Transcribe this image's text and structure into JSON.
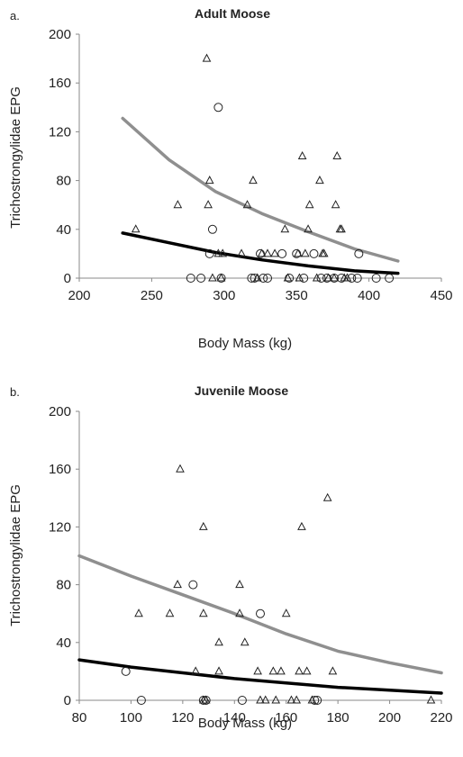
{
  "chart_data": [
    {
      "type": "scatter",
      "panel_label": "a.",
      "title": "Adult Moose",
      "xlabel": "Body Mass (kg)",
      "ylabel": "Trichostrongylidae EPG",
      "xlim": [
        200,
        450
      ],
      "ylim": [
        0,
        200
      ],
      "x_ticks": [
        200,
        250,
        300,
        350,
        400,
        450
      ],
      "y_ticks": [
        0,
        40,
        80,
        120,
        160,
        200
      ],
      "grid": false,
      "series": [
        {
          "marker": "triangle",
          "points": [
            [
              239,
              40
            ],
            [
              268,
              60
            ],
            [
              288,
              180
            ],
            [
              289,
              60
            ],
            [
              290,
              80
            ],
            [
              292,
              0
            ],
            [
              296,
              20
            ],
            [
              298,
              0
            ],
            [
              299,
              20
            ],
            [
              312,
              20
            ],
            [
              316,
              60
            ],
            [
              320,
              80
            ],
            [
              323,
              0
            ],
            [
              326,
              20
            ],
            [
              330,
              20
            ],
            [
              335,
              20
            ],
            [
              342,
              40
            ],
            [
              344,
              0
            ],
            [
              351,
              20
            ],
            [
              352,
              0
            ],
            [
              354,
              100
            ],
            [
              356,
              20
            ],
            [
              358,
              40
            ],
            [
              359,
              60
            ],
            [
              364,
              0
            ],
            [
              366,
              80
            ],
            [
              368,
              20
            ],
            [
              369,
              20
            ],
            [
              372,
              0
            ],
            [
              376,
              0
            ],
            [
              377,
              60
            ],
            [
              378,
              100
            ],
            [
              380,
              40
            ],
            [
              381,
              40
            ],
            [
              383,
              0
            ],
            [
              385,
              0
            ]
          ]
        },
        {
          "marker": "circle",
          "points": [
            [
              277,
              0
            ],
            [
              284,
              0
            ],
            [
              290,
              20
            ],
            [
              292,
              40
            ],
            [
              296,
              140
            ],
            [
              298,
              0
            ],
            [
              319,
              0
            ],
            [
              321,
              0
            ],
            [
              325,
              20
            ],
            [
              327,
              0
            ],
            [
              330,
              0
            ],
            [
              340,
              20
            ],
            [
              345,
              0
            ],
            [
              350,
              20
            ],
            [
              355,
              0
            ],
            [
              362,
              20
            ],
            [
              367,
              0
            ],
            [
              371,
              0
            ],
            [
              376,
              0
            ],
            [
              381,
              0
            ],
            [
              388,
              0
            ],
            [
              392,
              0
            ],
            [
              393,
              20
            ],
            [
              405,
              0
            ],
            [
              414,
              0
            ]
          ]
        }
      ],
      "curves": [
        {
          "color": "#8f8f8f",
          "points": [
            [
              230,
              131
            ],
            [
              262,
              97
            ],
            [
              294,
              71
            ],
            [
              326,
              53
            ],
            [
              358,
              38
            ],
            [
              390,
              24
            ],
            [
              420,
              14
            ]
          ]
        },
        {
          "color": "#000000",
          "points": [
            [
              230,
              37
            ],
            [
              262,
              29
            ],
            [
              294,
              21
            ],
            [
              326,
              15
            ],
            [
              358,
              10
            ],
            [
              390,
              6
            ],
            [
              420,
              4
            ]
          ]
        }
      ]
    },
    {
      "type": "scatter",
      "panel_label": "b.",
      "title": "Juvenile Moose",
      "xlabel": "Body Mass (kg)",
      "ylabel": "Trichostrongylidae EPG",
      "xlim": [
        80,
        220
      ],
      "ylim": [
        0,
        200
      ],
      "x_ticks": [
        80,
        100,
        120,
        140,
        160,
        180,
        200,
        220
      ],
      "y_ticks": [
        0,
        40,
        80,
        120,
        160,
        200
      ],
      "grid": false,
      "series": [
        {
          "marker": "triangle",
          "points": [
            [
              103,
              60
            ],
            [
              115,
              60
            ],
            [
              118,
              80
            ],
            [
              119,
              160
            ],
            [
              125,
              20
            ],
            [
              128,
              120
            ],
            [
              128,
              60
            ],
            [
              128,
              0
            ],
            [
              129,
              0
            ],
            [
              134,
              20
            ],
            [
              134,
              40
            ],
            [
              142,
              80
            ],
            [
              142,
              60
            ],
            [
              144,
              40
            ],
            [
              149,
              20
            ],
            [
              150,
              0
            ],
            [
              152,
              0
            ],
            [
              155,
              20
            ],
            [
              156,
              0
            ],
            [
              158,
              20
            ],
            [
              160,
              60
            ],
            [
              162,
              0
            ],
            [
              164,
              0
            ],
            [
              165,
              20
            ],
            [
              166,
              120
            ],
            [
              168,
              20
            ],
            [
              170,
              0
            ],
            [
              176,
              140
            ],
            [
              178,
              20
            ],
            [
              216,
              0
            ]
          ]
        },
        {
          "marker": "circle",
          "points": [
            [
              98,
              20
            ],
            [
              104,
              0
            ],
            [
              124,
              80
            ],
            [
              128,
              0
            ],
            [
              129,
              0
            ],
            [
              143,
              0
            ],
            [
              150,
              60
            ],
            [
              171,
              0
            ],
            [
              172,
              0
            ]
          ]
        }
      ],
      "curves": [
        {
          "color": "#8f8f8f",
          "points": [
            [
              80,
              100
            ],
            [
              100,
              86
            ],
            [
              120,
              73
            ],
            [
              140,
              60
            ],
            [
              160,
              46
            ],
            [
              180,
              34
            ],
            [
              200,
              26
            ],
            [
              220,
              19
            ]
          ]
        },
        {
          "color": "#000000",
          "points": [
            [
              80,
              28
            ],
            [
              100,
              23
            ],
            [
              120,
              19
            ],
            [
              140,
              15
            ],
            [
              160,
              12
            ],
            [
              180,
              9
            ],
            [
              200,
              7
            ],
            [
              220,
              5
            ]
          ]
        }
      ]
    }
  ]
}
